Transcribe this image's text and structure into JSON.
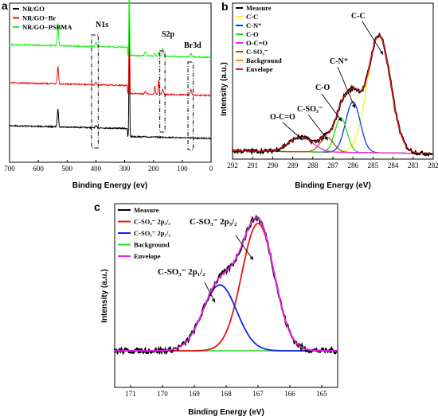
{
  "chart_data": [
    {
      "id": "a",
      "type": "line",
      "panel_label": "a",
      "xlabel": "Binding Energy (ev)",
      "ylabel": "",
      "xlim": [
        700,
        0
      ],
      "x_ticks": [
        700,
        600,
        500,
        400,
        300,
        200,
        100,
        0
      ],
      "legend_position": "top-left",
      "series": [
        {
          "name": "NR/GO",
          "color": "#000000"
        },
        {
          "name": "NR/GO−Br",
          "color": "#ee1111"
        },
        {
          "name": "NR/GO−PSBMA",
          "color": "#22ee22"
        }
      ],
      "annotations": [
        {
          "text": "N1s",
          "x": 400
        },
        {
          "text": "S2p",
          "x": 168
        },
        {
          "text": "Br3d",
          "x": 70
        }
      ]
    },
    {
      "id": "b",
      "type": "line",
      "panel_label": "b",
      "xlabel": "Binding Energy (eV)",
      "ylabel": "Intensity (a.u.)",
      "xlim": [
        292,
        282
      ],
      "x_ticks": [
        292,
        291,
        290,
        289,
        288,
        287,
        286,
        285,
        284,
        283,
        282
      ],
      "legend_position": "top-left",
      "series": [
        {
          "name": "Measure",
          "color": "#000000"
        },
        {
          "name": "C-C",
          "color": "#ffee22"
        },
        {
          "name": "C-N⁺",
          "color": "#1133ee"
        },
        {
          "name": "C-O",
          "color": "#22dd22"
        },
        {
          "name": "O-C=O",
          "color": "#ee22ee"
        },
        {
          "name": "C-SO₃⁻",
          "color": "#aa5511"
        },
        {
          "name": "Background",
          "color": "#ff8811"
        },
        {
          "name": "Envelope",
          "color": "#ee1111"
        }
      ],
      "peaks": [
        {
          "label": "C-C",
          "center": 284.7,
          "height": 0.88,
          "fwhm": 1.35
        },
        {
          "label": "C-N⁺",
          "center": 286.0,
          "height": 0.38,
          "fwhm": 0.85
        },
        {
          "label": "C-O",
          "center": 286.6,
          "height": 0.26,
          "fwhm": 0.7
        },
        {
          "label": "C-SO₃⁻",
          "center": 287.3,
          "height": 0.11,
          "fwhm": 0.8
        },
        {
          "label": "O-C=O",
          "center": 288.6,
          "height": 0.11,
          "fwhm": 1.4
        }
      ],
      "annotations": [
        {
          "text": "C-C",
          "x": 284.7
        },
        {
          "text": "C-N⁺",
          "x": 286.0
        },
        {
          "text": "C-O",
          "x": 286.6
        },
        {
          "text": "C-SO₃⁻",
          "x": 287.3
        },
        {
          "text": "O-C=O",
          "x": 288.6
        }
      ]
    },
    {
      "id": "c",
      "type": "line",
      "panel_label": "c",
      "xlabel": "Binding Energy (eV)",
      "ylabel": "Intensity (a.u.)",
      "xlim": [
        171.5,
        164.5
      ],
      "x_ticks": [
        171,
        170,
        169,
        168,
        167,
        166,
        165
      ],
      "legend_position": "top-left",
      "series": [
        {
          "name": "Measure",
          "color": "#000000"
        },
        {
          "name": "C-SO₃⁻ 2p₃/₂",
          "color": "#ee1111"
        },
        {
          "name": "C-SO₃⁻ 2p₁/₂",
          "color": "#1122ee"
        },
        {
          "name": "Background",
          "color": "#22dd22"
        },
        {
          "name": "Envelope",
          "color": "#ee22ee"
        }
      ],
      "peaks": [
        {
          "label": "C-SO₃⁻ 2p₃/₂",
          "center": 167.0,
          "height": 0.87,
          "fwhm": 1.2
        },
        {
          "label": "C-SO₃⁻ 2p₁/₂",
          "center": 168.2,
          "height": 0.45,
          "fwhm": 1.25
        }
      ],
      "annotations": [
        {
          "text": "C-SO₃⁻ 2p₃/₂",
          "x": 167.0
        },
        {
          "text": "C-SO₃⁻ 2p₁/₂",
          "x": 168.2
        }
      ]
    }
  ]
}
